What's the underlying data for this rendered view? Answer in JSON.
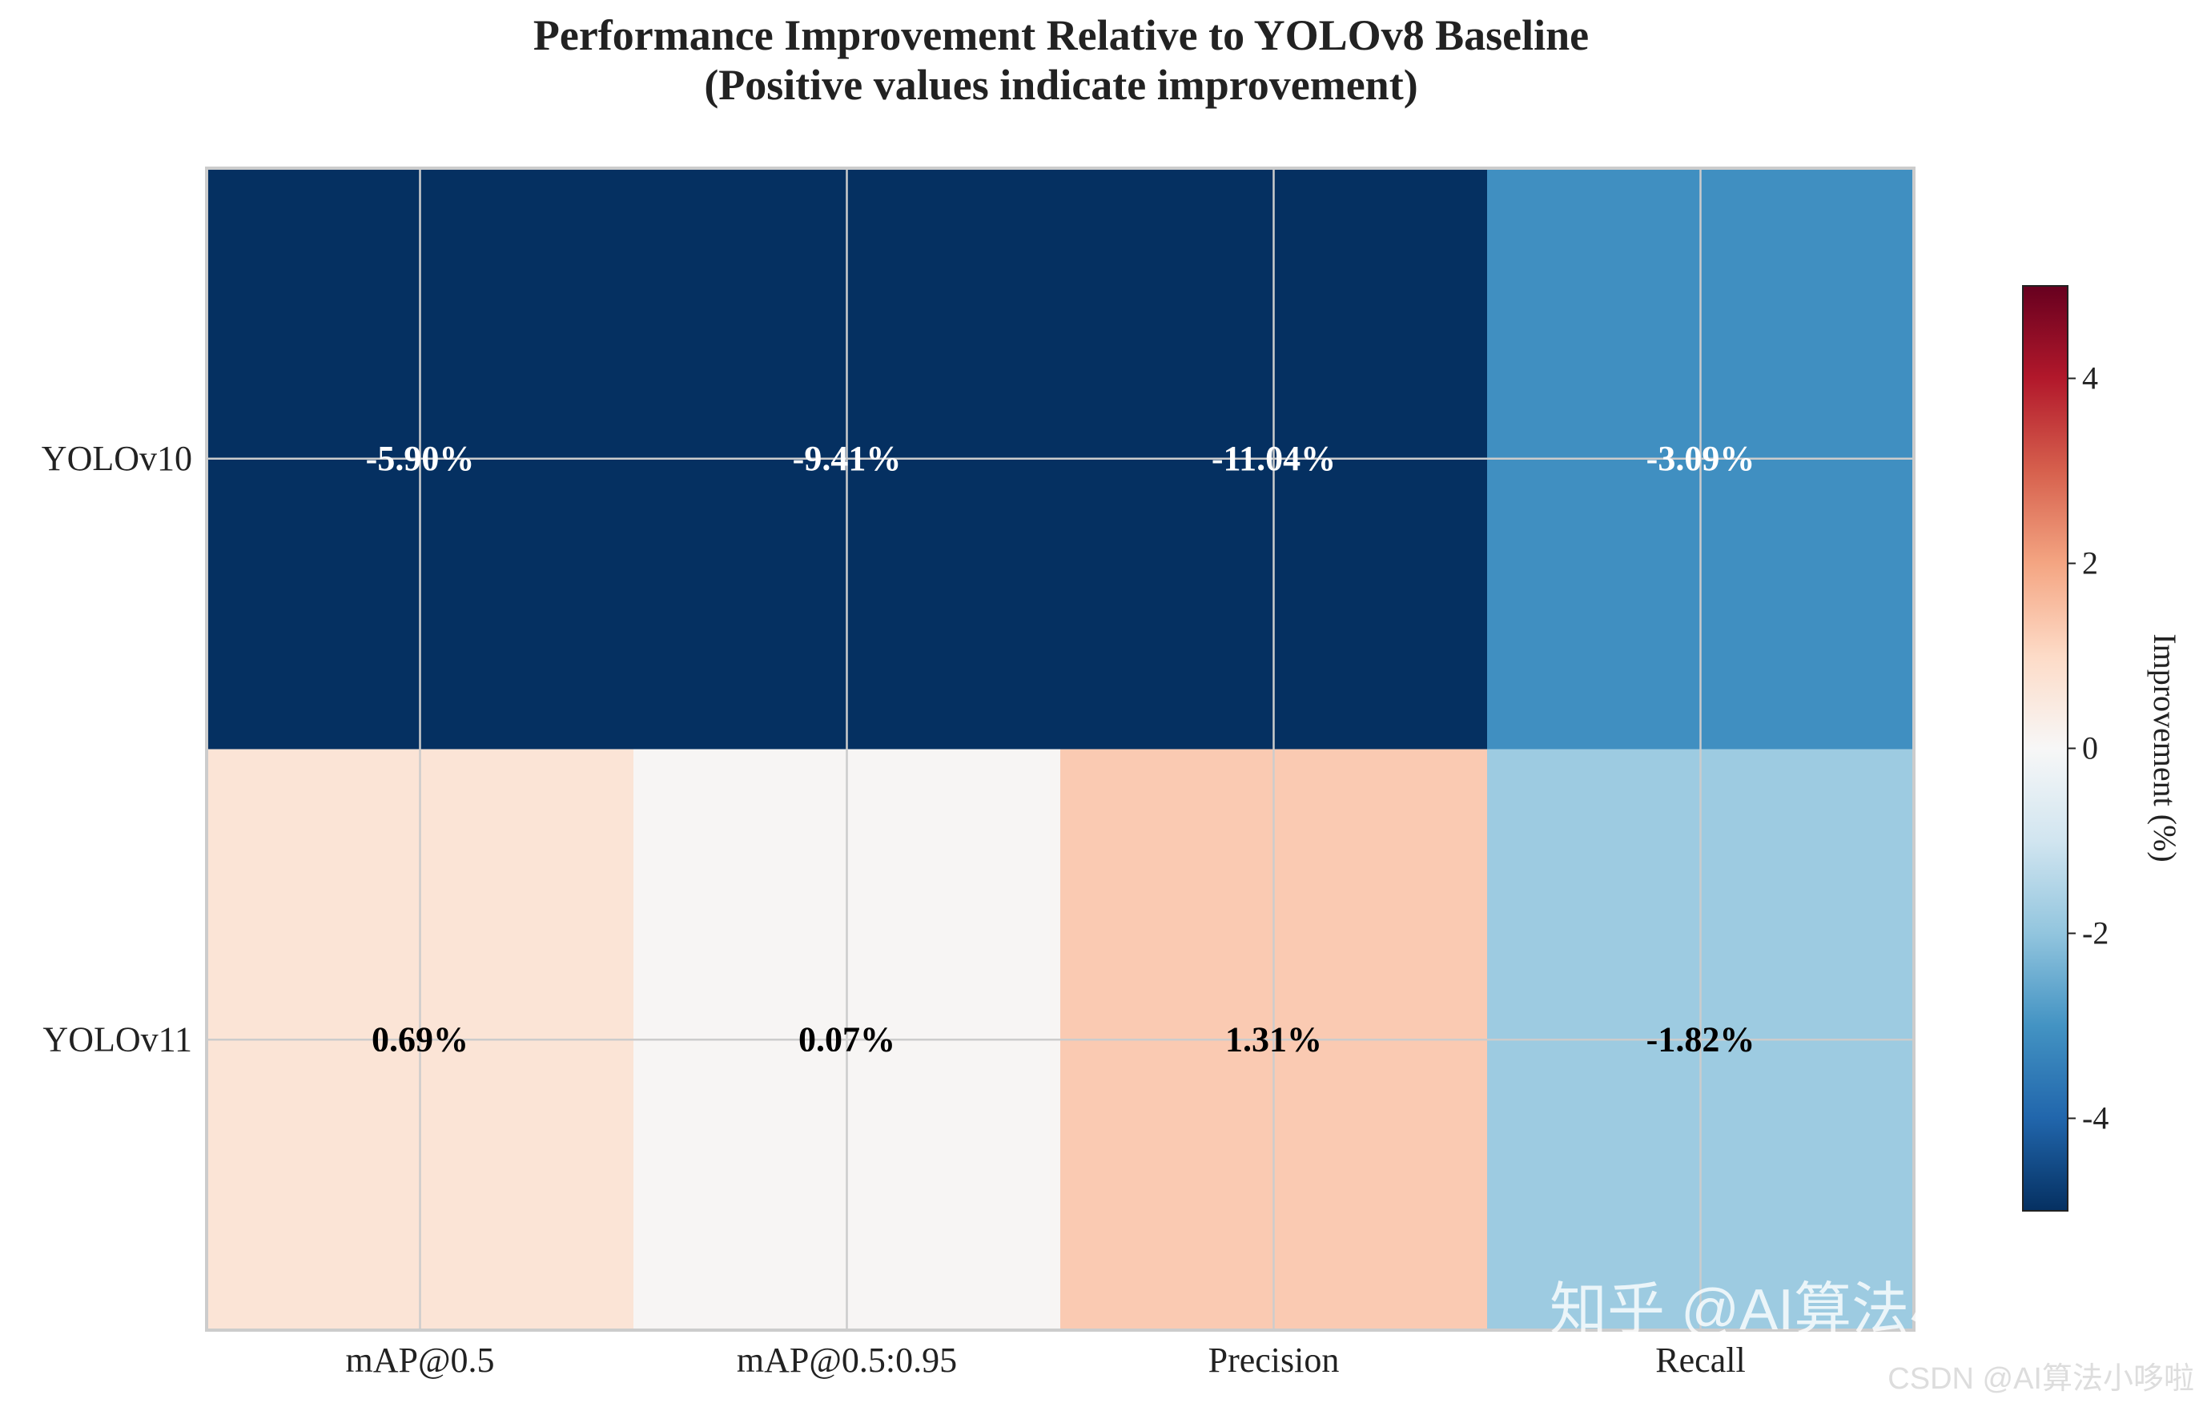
{
  "chart_data": {
    "type": "heatmap",
    "title_line1": "Performance Improvement Relative to YOLOv8 Baseline",
    "title_line2": "(Positive values indicate improvement)",
    "rows": [
      "YOLOv10",
      "YOLOv11"
    ],
    "columns": [
      "mAP@0.5",
      "mAP@0.5:0.95",
      "Precision",
      "Recall"
    ],
    "values": [
      [
        -5.9,
        -9.41,
        -11.04,
        -3.09
      ],
      [
        0.69,
        0.07,
        1.31,
        -1.82
      ]
    ],
    "cell_labels": [
      [
        "-5.90%",
        "-9.41%",
        "-11.04%",
        "-3.09%"
      ],
      [
        "0.69%",
        "0.07%",
        "1.31%",
        "-1.82%"
      ]
    ],
    "colormap": "RdBu_r",
    "color_range": [
      -5,
      5
    ],
    "grid": true,
    "colorbar": {
      "label": "Improvement (%)",
      "ticks": [
        4,
        2,
        0,
        -2,
        -4
      ],
      "tick_labels": [
        "4",
        "2",
        "0",
        "-2",
        "-4"
      ],
      "placement": "right"
    }
  },
  "watermarks": {
    "zhihu": "知乎 @AI算法小哆啦",
    "csdn": "CSDN @AI算法小哆啦"
  }
}
